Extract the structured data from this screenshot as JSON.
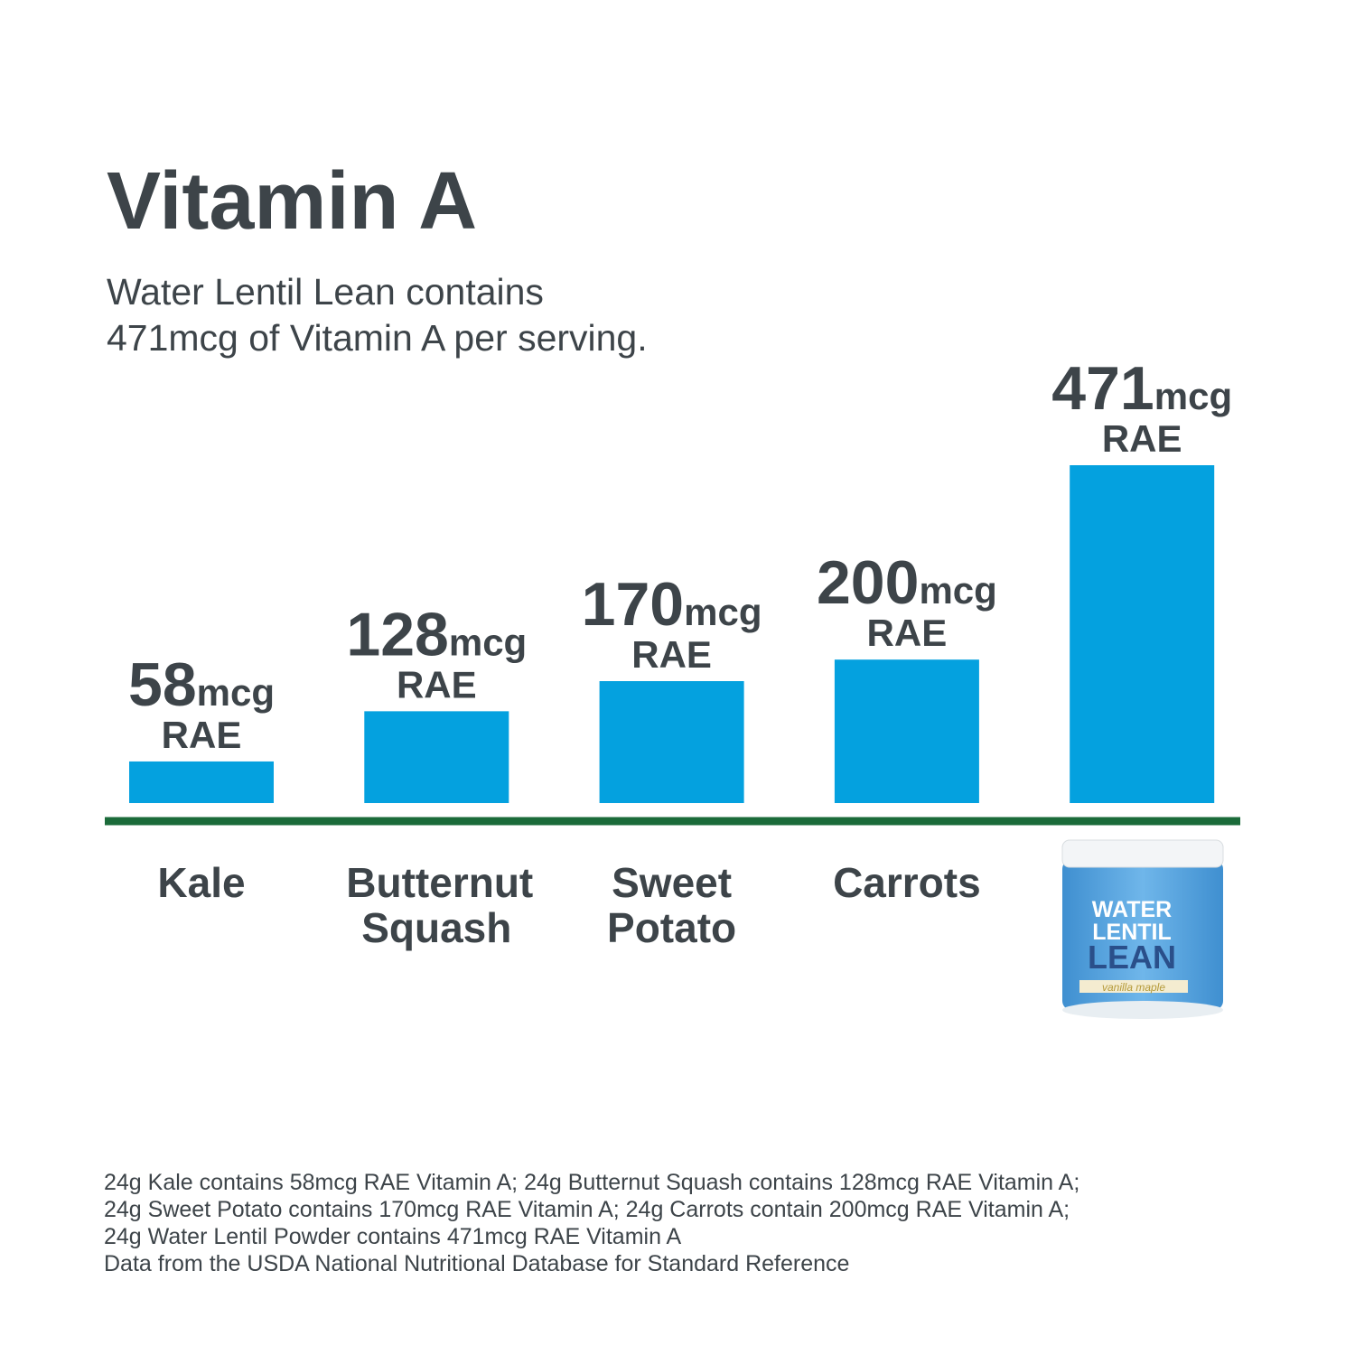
{
  "chart_data": {
    "type": "bar",
    "title": "Vitamin A",
    "subtitle": [
      "Water Lentil Lean contains",
      "471mcg of Vitamin A per serving."
    ],
    "categories": [
      "Kale",
      "Butternut Squash",
      "Sweet Potato",
      "Carrots",
      null
    ],
    "values": [
      58,
      128,
      170,
      200,
      471
    ],
    "value_labels": [
      [
        "58",
        "mcg",
        "RAE"
      ],
      [
        "128",
        "mcg",
        "RAE"
      ],
      [
        "170",
        "mcg",
        "RAE"
      ],
      [
        "200",
        "mcg",
        "RAE"
      ],
      [
        "471",
        "mcg",
        "RAE"
      ]
    ],
    "color": "#04a1df",
    "baseline_color": "#1b6b3a",
    "product_label": [
      "WATER",
      "LENTIL",
      "LEAN",
      "vanilla maple"
    ],
    "footnotes": [
      "24g Kale contains 58mcg RAE Vitamin A; 24g Butternut Squash contains 128mcg RAE Vitamin A;",
      "24g Sweet Potato contains 170mcg RAE Vitamin A; 24g Carrots contain 200mcg RAE Vitamin A;",
      "24g Water Lentil Powder contains 471mcg RAE Vitamin A",
      "Data from the USDA National Nutritional Database for Standard Reference"
    ]
  }
}
